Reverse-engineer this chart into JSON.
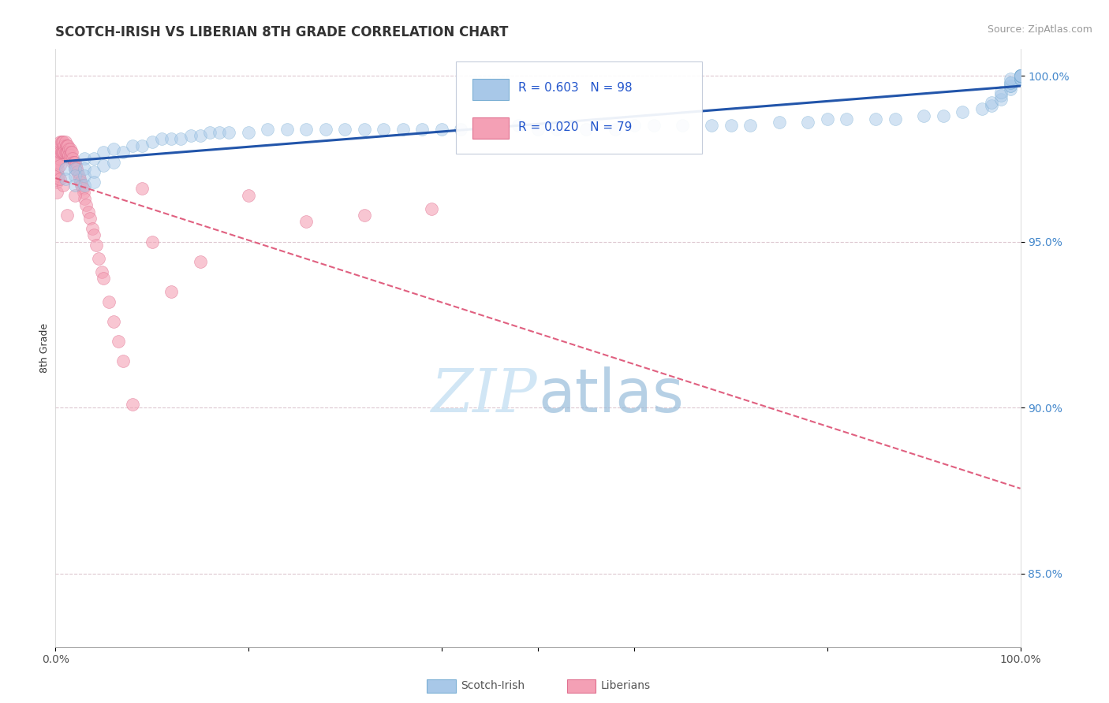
{
  "title": "SCOTCH-IRISH VS LIBERIAN 8TH GRADE CORRELATION CHART",
  "source": "Source: ZipAtlas.com",
  "ylabel": "8th Grade",
  "xlim": [
    0.0,
    1.0
  ],
  "ylim": [
    0.828,
    1.008
  ],
  "y_ticks": [
    0.85,
    0.9,
    0.95,
    1.0
  ],
  "y_tick_labels": [
    "85.0%",
    "90.0%",
    "95.0%",
    "100.0%"
  ],
  "R_blue": 0.603,
  "N_blue": 98,
  "R_pink": 0.02,
  "N_pink": 79,
  "blue_color": "#a8c8e8",
  "blue_edge": "#7bafd4",
  "pink_color": "#f4a0b5",
  "pink_edge": "#e07090",
  "trend_blue_color": "#2255aa",
  "trend_pink_color": "#e06080",
  "background_color": "#ffffff",
  "grid_color": "#ddc8d0",
  "watermark_color": "#cce4f4",
  "title_fontsize": 12,
  "axis_label_fontsize": 9,
  "tick_fontsize": 10,
  "source_fontsize": 9,
  "scotch_irish_x": [
    0.01,
    0.01,
    0.02,
    0.02,
    0.02,
    0.03,
    0.03,
    0.03,
    0.03,
    0.04,
    0.04,
    0.04,
    0.05,
    0.05,
    0.06,
    0.06,
    0.07,
    0.08,
    0.09,
    0.1,
    0.11,
    0.12,
    0.13,
    0.14,
    0.15,
    0.16,
    0.17,
    0.18,
    0.2,
    0.22,
    0.24,
    0.26,
    0.28,
    0.3,
    0.32,
    0.34,
    0.36,
    0.38,
    0.4,
    0.42,
    0.45,
    0.48,
    0.5,
    0.52,
    0.55,
    0.58,
    0.6,
    0.62,
    0.65,
    0.68,
    0.7,
    0.72,
    0.75,
    0.78,
    0.8,
    0.82,
    0.85,
    0.87,
    0.9,
    0.92,
    0.94,
    0.96,
    0.97,
    0.97,
    0.98,
    0.98,
    0.98,
    0.99,
    0.99,
    0.99,
    0.99,
    0.99,
    0.99,
    1.0,
    1.0,
    1.0,
    1.0,
    1.0,
    1.0,
    1.0,
    1.0,
    1.0,
    1.0,
    1.0,
    1.0,
    1.0,
    1.0,
    1.0,
    1.0,
    1.0,
    1.0,
    1.0,
    1.0,
    1.0,
    1.0,
    1.0,
    1.0,
    1.0
  ],
  "scotch_irish_y": [
    0.972,
    0.969,
    0.972,
    0.97,
    0.967,
    0.975,
    0.972,
    0.97,
    0.967,
    0.975,
    0.971,
    0.968,
    0.977,
    0.973,
    0.978,
    0.974,
    0.977,
    0.979,
    0.979,
    0.98,
    0.981,
    0.981,
    0.981,
    0.982,
    0.982,
    0.983,
    0.983,
    0.983,
    0.983,
    0.984,
    0.984,
    0.984,
    0.984,
    0.984,
    0.984,
    0.984,
    0.984,
    0.984,
    0.984,
    0.984,
    0.985,
    0.985,
    0.984,
    0.984,
    0.984,
    0.984,
    0.985,
    0.985,
    0.985,
    0.985,
    0.985,
    0.985,
    0.986,
    0.986,
    0.987,
    0.987,
    0.987,
    0.987,
    0.988,
    0.988,
    0.989,
    0.99,
    0.991,
    0.992,
    0.993,
    0.994,
    0.995,
    0.996,
    0.997,
    0.997,
    0.998,
    0.998,
    0.999,
    0.999,
    0.999,
    0.999,
    0.999,
    0.999,
    1.0,
    1.0,
    1.0,
    1.0,
    1.0,
    1.0,
    1.0,
    1.0,
    1.0,
    1.0,
    1.0,
    1.0,
    1.0,
    1.0,
    1.0,
    1.0,
    1.0,
    1.0,
    1.0,
    1.0
  ],
  "liberian_x": [
    0.001,
    0.001,
    0.001,
    0.001,
    0.002,
    0.002,
    0.002,
    0.003,
    0.003,
    0.003,
    0.004,
    0.004,
    0.005,
    0.005,
    0.005,
    0.006,
    0.006,
    0.007,
    0.007,
    0.008,
    0.008,
    0.009,
    0.009,
    0.01,
    0.01,
    0.011,
    0.011,
    0.012,
    0.012,
    0.013,
    0.013,
    0.014,
    0.014,
    0.015,
    0.015,
    0.016,
    0.016,
    0.017,
    0.018,
    0.018,
    0.019,
    0.02,
    0.02,
    0.021,
    0.022,
    0.023,
    0.024,
    0.025,
    0.026,
    0.027,
    0.028,
    0.029,
    0.03,
    0.032,
    0.034,
    0.036,
    0.038,
    0.04,
    0.042,
    0.045,
    0.048,
    0.05,
    0.055,
    0.06,
    0.065,
    0.07,
    0.08,
    0.09,
    0.1,
    0.12,
    0.15,
    0.2,
    0.26,
    0.32,
    0.39,
    0.02,
    0.012,
    0.008,
    0.005
  ],
  "liberian_y": [
    0.974,
    0.971,
    0.968,
    0.965,
    0.976,
    0.972,
    0.969,
    0.977,
    0.974,
    0.97,
    0.978,
    0.975,
    0.98,
    0.977,
    0.973,
    0.98,
    0.977,
    0.98,
    0.977,
    0.98,
    0.977,
    0.979,
    0.977,
    0.98,
    0.977,
    0.979,
    0.977,
    0.979,
    0.977,
    0.979,
    0.977,
    0.978,
    0.976,
    0.978,
    0.976,
    0.977,
    0.975,
    0.977,
    0.975,
    0.974,
    0.974,
    0.974,
    0.972,
    0.973,
    0.972,
    0.971,
    0.97,
    0.969,
    0.968,
    0.967,
    0.966,
    0.965,
    0.963,
    0.961,
    0.959,
    0.957,
    0.954,
    0.952,
    0.949,
    0.945,
    0.941,
    0.939,
    0.932,
    0.926,
    0.92,
    0.914,
    0.901,
    0.966,
    0.95,
    0.935,
    0.944,
    0.964,
    0.956,
    0.958,
    0.96,
    0.964,
    0.958,
    0.967,
    0.969
  ]
}
